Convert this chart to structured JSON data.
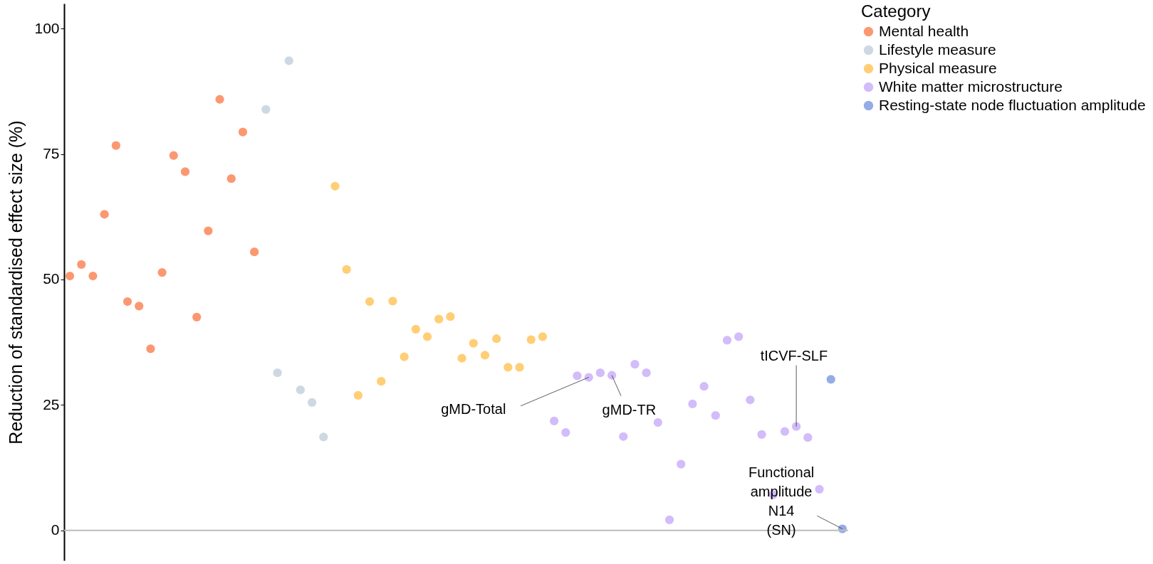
{
  "chart_data": {
    "type": "scatter",
    "ylabel": "Reduction of standardised effect size (%)",
    "legend_title": "Category",
    "legend": "right",
    "marker": "circle",
    "grid": false,
    "ylim": [
      -6,
      105
    ],
    "yticks": [
      0,
      25,
      50,
      75,
      100
    ],
    "categories": [
      null,
      null,
      null,
      null,
      null,
      null,
      null,
      null,
      null,
      null,
      null,
      null,
      null,
      null,
      null,
      null,
      null,
      null,
      null,
      null,
      null,
      null,
      null,
      null,
      null,
      null,
      null,
      null,
      null,
      null,
      null,
      null,
      null,
      null,
      null,
      null,
      null,
      null,
      null,
      null,
      null,
      null,
      null,
      null,
      null,
      null,
      null,
      null,
      null,
      null,
      null,
      null,
      null,
      null,
      null,
      null,
      null,
      null,
      null,
      null,
      null,
      null,
      null,
      null,
      null,
      null,
      null,
      null
    ],
    "series": [
      {
        "name": "Mental health",
        "color": "#fc8d62",
        "values": [
          50.7,
          53.0,
          50.7,
          63.0,
          76.7,
          45.6,
          44.7,
          36.2,
          51.4,
          74.7,
          71.5,
          42.5,
          59.7,
          85.9,
          70.1,
          79.4,
          55.5,
          null,
          null,
          null,
          null,
          null,
          null,
          null,
          null,
          null,
          null,
          null,
          null,
          null,
          null,
          null,
          null,
          null,
          null,
          null,
          null,
          null,
          null,
          null,
          null,
          null,
          null,
          null,
          null,
          null,
          null,
          null,
          null,
          null,
          null,
          null,
          null,
          null,
          null,
          null,
          null,
          null,
          null,
          null,
          null,
          null,
          null,
          null,
          null,
          null,
          null,
          null
        ]
      },
      {
        "name": "Lifestyle measure",
        "color": "#c9d4e0",
        "values": [
          null,
          null,
          null,
          null,
          null,
          null,
          null,
          null,
          null,
          null,
          null,
          null,
          null,
          null,
          null,
          null,
          null,
          83.9,
          31.4,
          93.6,
          28.0,
          25.5,
          18.6,
          null,
          null,
          null,
          null,
          null,
          null,
          null,
          null,
          null,
          null,
          null,
          null,
          null,
          null,
          null,
          null,
          null,
          null,
          null,
          null,
          null,
          null,
          null,
          null,
          null,
          null,
          null,
          null,
          null,
          null,
          null,
          null,
          null,
          null,
          null,
          null,
          null,
          null,
          null,
          null,
          null,
          null,
          null,
          null,
          null
        ]
      },
      {
        "name": "Physical measure",
        "color": "#ffc966",
        "values": [
          null,
          null,
          null,
          null,
          null,
          null,
          null,
          null,
          null,
          null,
          null,
          null,
          null,
          null,
          null,
          null,
          null,
          null,
          null,
          null,
          null,
          null,
          null,
          68.6,
          52.0,
          26.9,
          45.6,
          29.7,
          45.7,
          34.6,
          40.1,
          38.6,
          42.1,
          42.6,
          34.3,
          37.3,
          34.9,
          38.2,
          32.5,
          32.5,
          38.0,
          38.6,
          null,
          null,
          null,
          null,
          null,
          null,
          null,
          null,
          null,
          null,
          null,
          null,
          null,
          null,
          null,
          null,
          null,
          null,
          null,
          null,
          null,
          null,
          null,
          null,
          null,
          null
        ]
      },
      {
        "name": "White matter microstructure",
        "color": "#cdb5fa",
        "values": [
          null,
          null,
          null,
          null,
          null,
          null,
          null,
          null,
          null,
          null,
          null,
          null,
          null,
          null,
          null,
          null,
          null,
          null,
          null,
          null,
          null,
          null,
          null,
          null,
          null,
          null,
          null,
          null,
          null,
          null,
          null,
          null,
          null,
          null,
          null,
          null,
          null,
          null,
          null,
          null,
          null,
          null,
          21.8,
          19.5,
          30.8,
          30.5,
          31.4,
          30.9,
          18.7,
          33.1,
          31.4,
          21.5,
          2.1,
          13.2,
          25.2,
          28.7,
          22.9,
          37.9,
          38.6,
          26.0,
          19.1,
          7.1,
          19.7,
          20.7,
          18.5,
          8.2,
          null,
          null
        ]
      },
      {
        "name": "Resting-state node fluctuation amplitude",
        "color": "#8aa3e3",
        "values": [
          null,
          null,
          null,
          null,
          null,
          null,
          null,
          null,
          null,
          null,
          null,
          null,
          null,
          null,
          null,
          null,
          null,
          null,
          null,
          null,
          null,
          null,
          null,
          null,
          null,
          null,
          null,
          null,
          null,
          null,
          null,
          null,
          null,
          null,
          null,
          null,
          null,
          null,
          null,
          null,
          null,
          null,
          null,
          null,
          null,
          null,
          null,
          null,
          null,
          null,
          null,
          null,
          null,
          null,
          null,
          null,
          null,
          null,
          null,
          null,
          null,
          null,
          null,
          null,
          null,
          null,
          30.1,
          0.3
        ]
      }
    ],
    "ref_lines": [
      {
        "axis": "y",
        "value": 0,
        "color": "#bdbdbd"
      }
    ],
    "annotations": [
      "gMD-Total",
      "gMD-TR",
      "tICVF-SLF",
      "Functional amplitude N14 (SN)"
    ]
  }
}
